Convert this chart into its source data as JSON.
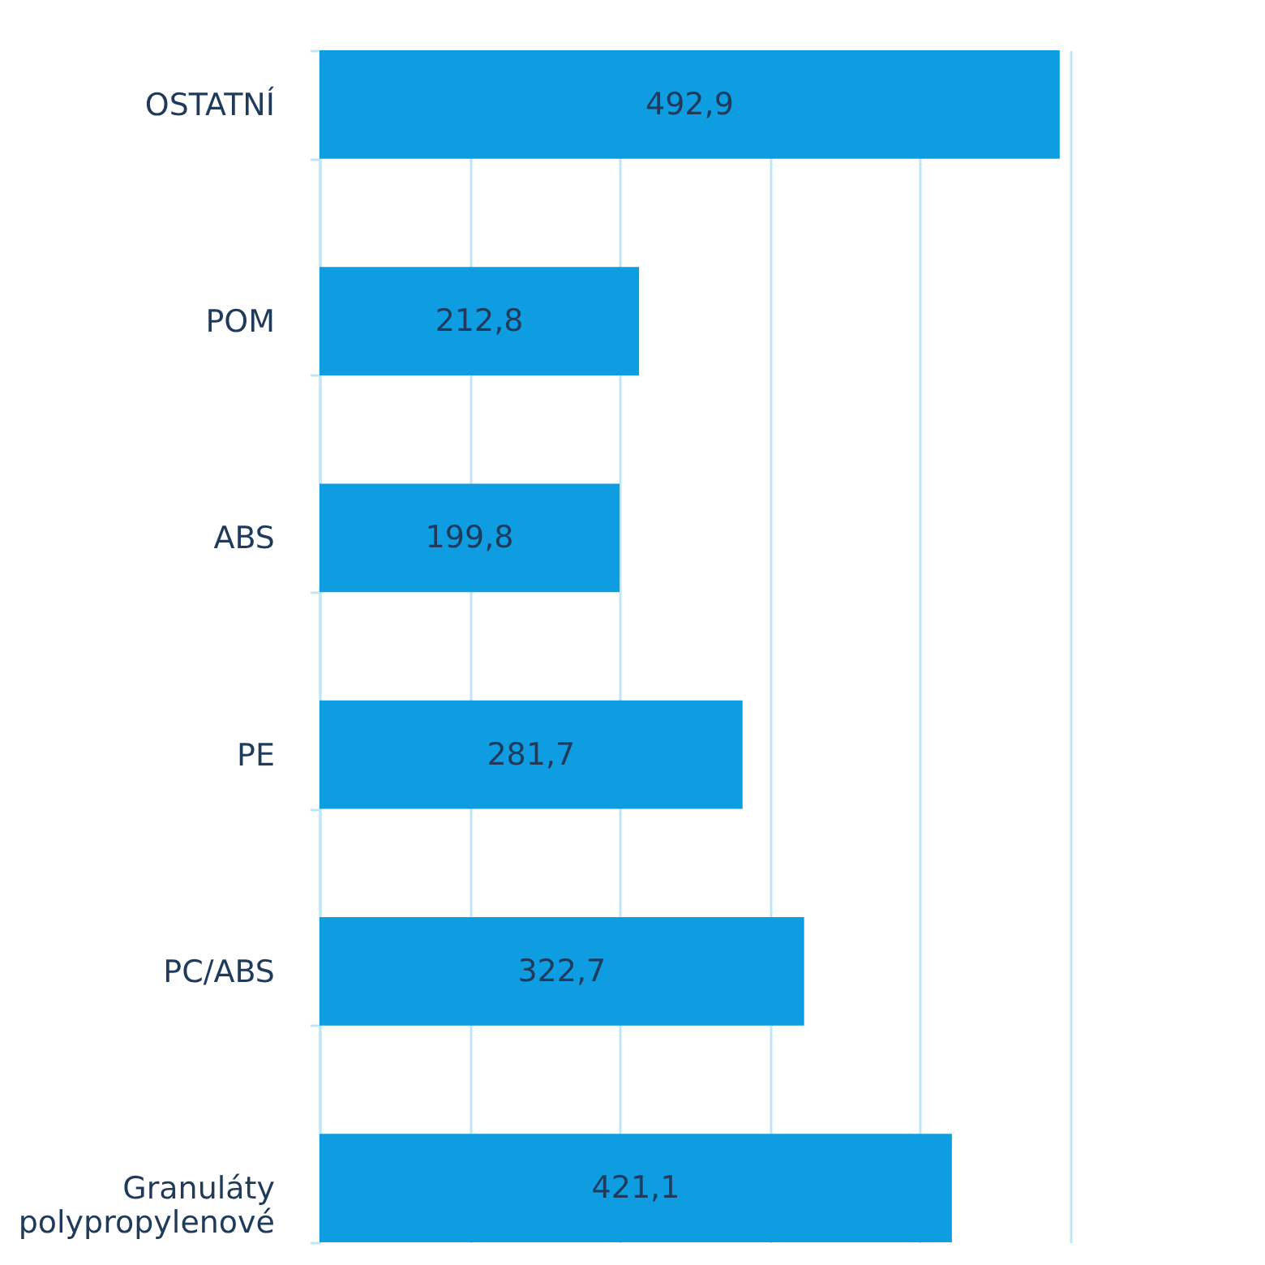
{
  "chart_data": {
    "type": "bar",
    "orientation": "horizontal",
    "categories": [
      "OSTATNÍ",
      "POM",
      "ABS",
      "PE",
      "PC/ABS",
      "Granuláty polypropylenové"
    ],
    "values": [
      492.9,
      212.8,
      199.8,
      281.7,
      322.7,
      421.1
    ],
    "value_labels": [
      "492,9",
      "212,8",
      "199,8",
      "281,7",
      "322,7",
      "421,1"
    ],
    "color": "#0f9de2",
    "xlim": [
      0,
      500
    ],
    "xticks": [
      {
        "value": 0,
        "label": null
      },
      {
        "value": 100,
        "label": null
      },
      {
        "value": 200,
        "label": null
      },
      {
        "value": 300,
        "label": null
      },
      {
        "value": 400,
        "label": null
      },
      {
        "value": 500,
        "label": null
      }
    ],
    "grid": "x",
    "tick_labels": "y"
  }
}
